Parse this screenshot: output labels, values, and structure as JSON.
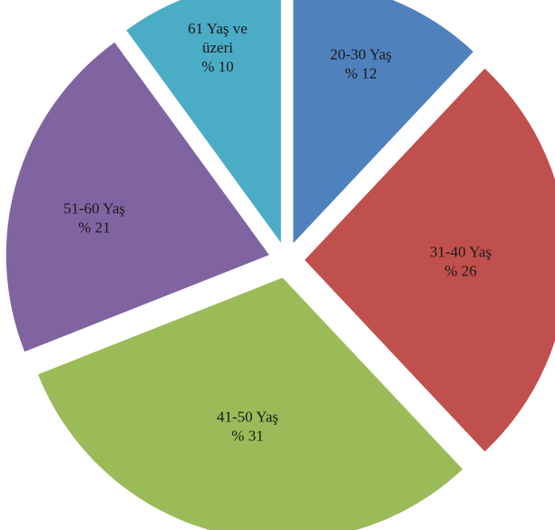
{
  "chart_data": {
    "type": "pie",
    "exploded": true,
    "slices": [
      {
        "label_line1": "20-30 Yaş",
        "label_line2": "% 12",
        "value": 12,
        "color": "#4f81bd"
      },
      {
        "label_line1": "31-40 Yaş",
        "label_line2": "% 26",
        "value": 26,
        "color": "#c0504d"
      },
      {
        "label_line1": "41-50 Yaş",
        "label_line2": "% 31",
        "value": 31,
        "color": "#9bbb59"
      },
      {
        "label_line1": "51-60 Yaş",
        "label_line2": "% 21",
        "value": 21,
        "color": "#8064a2"
      },
      {
        "label_line1": "61 Yaş ve",
        "label_line1b": "üzeri",
        "label_line2": "% 10",
        "value": 10,
        "color": "#4bacc6"
      }
    ]
  }
}
